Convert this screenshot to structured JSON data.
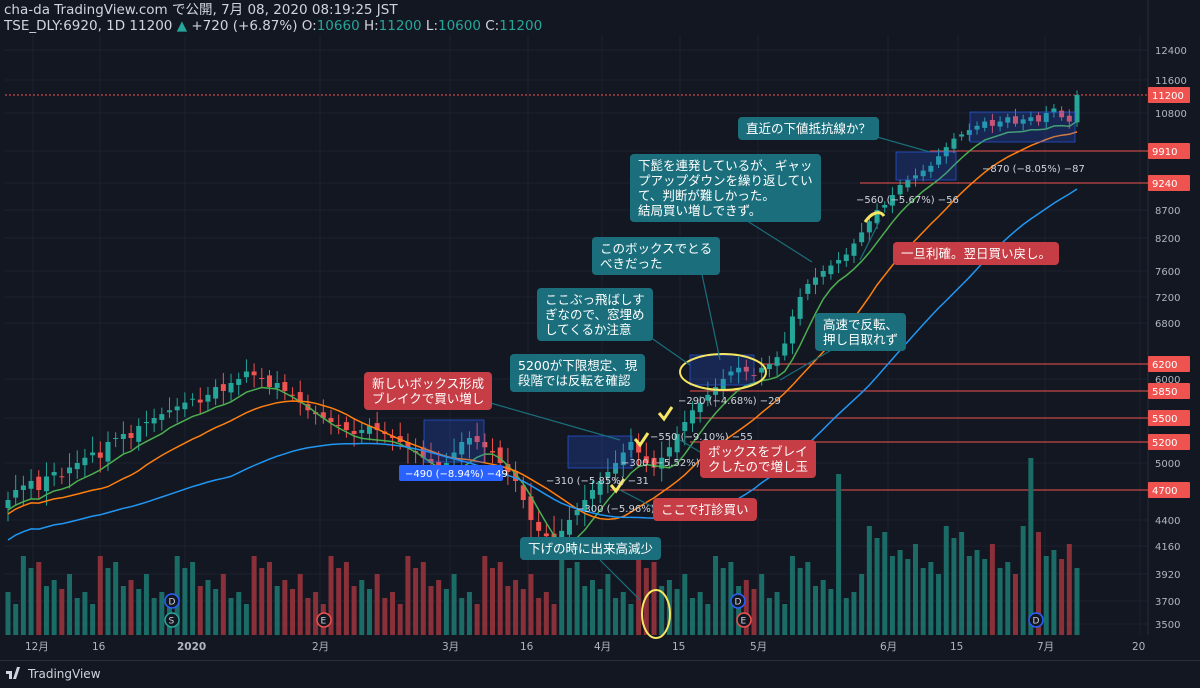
{
  "header": {
    "line1": "cha-da TradingView.com で公開, 7月 08, 2020 08:19:25 JST",
    "symbol": "TSE_DLY:6920, 1D 11200",
    "change_arrow": "▲",
    "change": "+720 (+6.87%)",
    "o_label": "O:",
    "o_val": "10660",
    "h_label": "H:",
    "h_val": "11200",
    "l_label": "L:",
    "l_val": "10600",
    "c_label": "C:",
    "c_val": "11200"
  },
  "footer": {
    "brand": "TradingView"
  },
  "chart_data": {
    "type": "candlestick",
    "title": "TSE_DLY:6920, 1D",
    "y_ticks": [
      12400,
      11600,
      10800,
      9910,
      8700,
      8200,
      7600,
      7200,
      6800,
      6200,
      6000,
      5850,
      5500,
      5200,
      5000,
      4700,
      4400,
      4160,
      3920,
      3700,
      3500
    ],
    "x_ticks": [
      "12月",
      "16",
      "2020",
      "2月",
      "3月",
      "16",
      "4月",
      "15",
      "5月",
      "6月",
      "15",
      "7月",
      "20"
    ],
    "price_labels": [
      {
        "value": "11200",
        "kind": "last"
      },
      {
        "value": "9910",
        "kind": "line"
      },
      {
        "value": "9240",
        "kind": "line"
      },
      {
        "value": "6200",
        "kind": "line"
      },
      {
        "value": "5850",
        "kind": "line"
      },
      {
        "value": "5500",
        "kind": "line"
      },
      {
        "value": "5200",
        "kind": "line"
      },
      {
        "value": "4700",
        "kind": "line"
      }
    ],
    "measure_labels": [
      "−490 (−8.94%) −49",
      "−310 (−5.85%) −31",
      "−300 (−5.96%) −30",
      "−300 (−5.52%) −30",
      "−550 (−9.10%) −55",
      "−290 (−4.68%) −29",
      "−560 (−5.67%) −56",
      "−870 (−8.05%) −87"
    ],
    "event_markers": [
      "D",
      "S",
      "E",
      "D",
      "E",
      "D"
    ],
    "annotations": [
      {
        "text": "新しいボックス形成\nブレイクで買い増し",
        "style": "red"
      },
      {
        "text": "5200が下限想定、現\n段階では反転を確認",
        "style": "teal"
      },
      {
        "text": "ここぶっ飛ばしす\nぎなので、窓埋め\nしてくるか注意",
        "style": "teal"
      },
      {
        "text": "このボックスでとる\nべきだった",
        "style": "teal"
      },
      {
        "text": "下髭を連発しているが、ギャッ\nプアップダウンを繰り返してい\nて、判断が難しかった。\n結局買い増しできず。",
        "style": "teal"
      },
      {
        "text": "直近の下値抵抗線か？",
        "style": "teal"
      },
      {
        "text": "一旦利確。翌日買い戻し。",
        "style": "red"
      },
      {
        "text": "高速で反転、\n押し目取れず",
        "style": "teal"
      },
      {
        "text": "ボックスをブレイ\nクしたので増し玉",
        "style": "red"
      },
      {
        "text": "ここで打診買い",
        "style": "red"
      },
      {
        "text": "下げの時に出来高減少",
        "style": "teal"
      }
    ],
    "colors": {
      "background": "#131722",
      "up": "#26a69a",
      "down": "#ef5350",
      "ma_short": "#4caf50",
      "ma_mid": "#ff7f0e",
      "ma_long": "#2196f3"
    }
  }
}
